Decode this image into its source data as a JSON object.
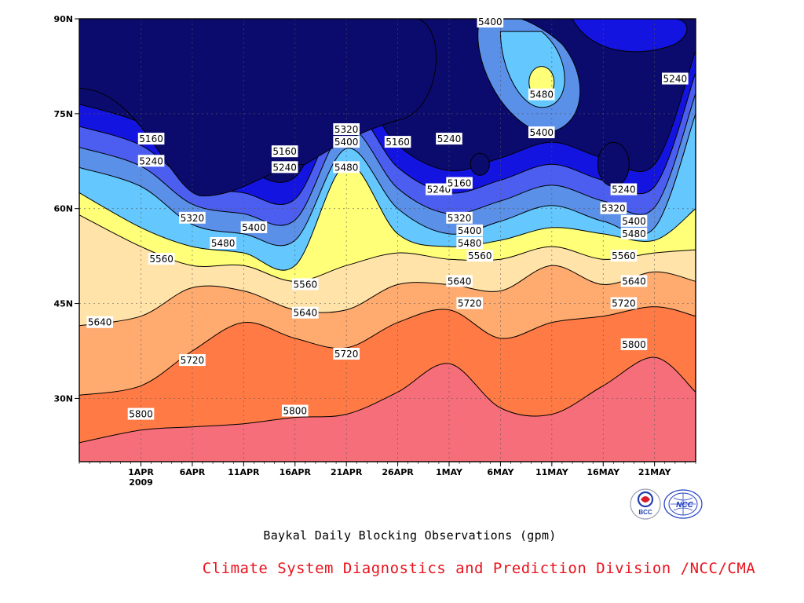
{
  "chart_data": {
    "type": "heatmap",
    "subtype": "filled-contour",
    "title": "Baykal Daily Blocking Observations (gpm)",
    "x_ticks": [
      {
        "date": "2009-04-01",
        "label": "1APR",
        "sublabel": "2009"
      },
      {
        "date": "2009-04-06",
        "label": "6APR"
      },
      {
        "date": "2009-04-11",
        "label": "11APR"
      },
      {
        "date": "2009-04-16",
        "label": "16APR"
      },
      {
        "date": "2009-04-21",
        "label": "21APR"
      },
      {
        "date": "2009-04-26",
        "label": "26APR"
      },
      {
        "date": "2009-05-01",
        "label": "1MAY"
      },
      {
        "date": "2009-05-06",
        "label": "6MAY"
      },
      {
        "date": "2009-05-11",
        "label": "11MAY"
      },
      {
        "date": "2009-05-16",
        "label": "16MAY"
      },
      {
        "date": "2009-05-21",
        "label": "21MAY"
      }
    ],
    "xlim": [
      "2009-03-26",
      "2009-05-25"
    ],
    "y_ticks": [
      {
        "value": 30,
        "label": "30N"
      },
      {
        "value": 45,
        "label": "45N"
      },
      {
        "value": 60,
        "label": "60N"
      },
      {
        "value": 75,
        "label": "75N"
      },
      {
        "value": 90,
        "label": "90N"
      }
    ],
    "ylim": [
      20,
      90
    ],
    "grid": true,
    "contour_levels": [
      5160,
      5240,
      5320,
      5400,
      5480,
      5560,
      5640,
      5720,
      5800
    ],
    "fill_colors": [
      "#0b0b6e",
      "#1414e0",
      "#4b5ef0",
      "#5a90e8",
      "#64c8ff",
      "#ffff78",
      "#ffe3a8",
      "#ffaa6e",
      "#ff7a44",
      "#f56e7a"
    ],
    "contour_lines": [
      {
        "level": 5800,
        "points": [
          [
            "2009-03-26",
            23
          ],
          [
            "2009-04-01",
            25
          ],
          [
            "2009-04-06",
            25.5
          ],
          [
            "2009-04-11",
            26
          ],
          [
            "2009-04-16",
            27
          ],
          [
            "2009-04-21",
            27.5
          ],
          [
            "2009-04-26",
            31
          ],
          [
            "2009-05-01",
            35.5
          ],
          [
            "2009-05-06",
            28.5
          ],
          [
            "2009-05-11",
            27.5
          ],
          [
            "2009-05-16",
            32
          ],
          [
            "2009-05-21",
            36.5
          ],
          [
            "2009-05-25",
            31
          ]
        ]
      },
      {
        "level": 5720,
        "points": [
          [
            "2009-03-26",
            30.5
          ],
          [
            "2009-04-01",
            32
          ],
          [
            "2009-04-06",
            37.5
          ],
          [
            "2009-04-11",
            42
          ],
          [
            "2009-04-16",
            39.5
          ],
          [
            "2009-04-21",
            38
          ],
          [
            "2009-04-26",
            42
          ],
          [
            "2009-05-01",
            44
          ],
          [
            "2009-05-06",
            39.5
          ],
          [
            "2009-05-11",
            42
          ],
          [
            "2009-05-16",
            43
          ],
          [
            "2009-05-21",
            44.5
          ],
          [
            "2009-05-25",
            43
          ]
        ]
      },
      {
        "level": 5640,
        "points": [
          [
            "2009-03-26",
            41.5
          ],
          [
            "2009-04-01",
            43
          ],
          [
            "2009-04-06",
            47.5
          ],
          [
            "2009-04-11",
            47
          ],
          [
            "2009-04-16",
            44
          ],
          [
            "2009-04-21",
            44
          ],
          [
            "2009-04-26",
            48
          ],
          [
            "2009-05-01",
            48
          ],
          [
            "2009-05-06",
            47
          ],
          [
            "2009-05-11",
            51
          ],
          [
            "2009-05-16",
            48
          ],
          [
            "2009-05-21",
            50
          ],
          [
            "2009-05-25",
            48.5
          ]
        ]
      },
      {
        "level": 5560,
        "points": [
          [
            "2009-03-26",
            59
          ],
          [
            "2009-04-01",
            54
          ],
          [
            "2009-04-06",
            51
          ],
          [
            "2009-04-11",
            51
          ],
          [
            "2009-04-16",
            48.5
          ],
          [
            "2009-04-21",
            51
          ],
          [
            "2009-04-26",
            53
          ],
          [
            "2009-05-01",
            52
          ],
          [
            "2009-05-06",
            52
          ],
          [
            "2009-05-11",
            54
          ],
          [
            "2009-05-16",
            52
          ],
          [
            "2009-05-21",
            53
          ],
          [
            "2009-05-25",
            53.5
          ]
        ]
      },
      {
        "level": 5480,
        "points": [
          [
            "2009-03-26",
            62.5
          ],
          [
            "2009-04-01",
            57
          ],
          [
            "2009-04-06",
            54
          ],
          [
            "2009-04-11",
            53
          ],
          [
            "2009-04-16",
            51
          ],
          [
            "2009-04-21",
            67
          ],
          [
            "2009-04-26",
            56
          ],
          [
            "2009-05-01",
            54
          ],
          [
            "2009-05-06",
            55
          ],
          [
            "2009-05-11",
            57
          ],
          [
            "2009-05-16",
            56
          ],
          [
            "2009-05-21",
            55
          ],
          [
            "2009-05-25",
            60
          ]
        ]
      },
      {
        "level": 5400,
        "points": [
          [
            "2009-03-26",
            66.5
          ],
          [
            "2009-04-01",
            63.5
          ],
          [
            "2009-04-06",
            57.5
          ],
          [
            "2009-04-11",
            56
          ],
          [
            "2009-04-16",
            55
          ],
          [
            "2009-04-21",
            69.5
          ],
          [
            "2009-04-26",
            60
          ],
          [
            "2009-05-01",
            56
          ],
          [
            "2009-05-06",
            58
          ],
          [
            "2009-05-11",
            60.5
          ],
          [
            "2009-05-16",
            58
          ],
          [
            "2009-05-21",
            57
          ],
          [
            "2009-05-25",
            75
          ]
        ]
      }
    ],
    "contour_labels": [
      {
        "level": 5160,
        "date": "2009-04-02",
        "lat": 71
      },
      {
        "level": 5240,
        "date": "2009-04-02",
        "lat": 67.5
      },
      {
        "level": 5160,
        "date": "2009-04-15",
        "lat": 69
      },
      {
        "level": 5240,
        "date": "2009-04-15",
        "lat": 66.5
      },
      {
        "level": 5320,
        "date": "2009-04-06",
        "lat": 58.5
      },
      {
        "level": 5400,
        "date": "2009-04-12",
        "lat": 57
      },
      {
        "level": 5480,
        "date": "2009-04-09",
        "lat": 54.5
      },
      {
        "level": 5560,
        "date": "2009-04-03",
        "lat": 52
      },
      {
        "level": 5560,
        "date": "2009-04-17",
        "lat": 48
      },
      {
        "level": 5640,
        "date": "2009-03-28",
        "lat": 42
      },
      {
        "level": 5640,
        "date": "2009-04-17",
        "lat": 43.5
      },
      {
        "level": 5720,
        "date": "2009-04-06",
        "lat": 36
      },
      {
        "level": 5720,
        "date": "2009-04-21",
        "lat": 37
      },
      {
        "level": 5800,
        "date": "2009-04-01",
        "lat": 27.5
      },
      {
        "level": 5800,
        "date": "2009-04-16",
        "lat": 28
      },
      {
        "level": 5320,
        "date": "2009-04-21",
        "lat": 72.5
      },
      {
        "level": 5400,
        "date": "2009-04-21",
        "lat": 70.5
      },
      {
        "level": 5480,
        "date": "2009-04-21",
        "lat": 66.5
      },
      {
        "level": 5160,
        "date": "2009-04-26",
        "lat": 70.5
      },
      {
        "level": 5240,
        "date": "2009-05-01",
        "lat": 71
      },
      {
        "level": 5240,
        "date": "2009-04-30",
        "lat": 63
      },
      {
        "level": 5160,
        "date": "2009-05-02",
        "lat": 64
      },
      {
        "level": 5320,
        "date": "2009-05-02",
        "lat": 58.5
      },
      {
        "level": 5400,
        "date": "2009-05-03",
        "lat": 56.5
      },
      {
        "level": 5480,
        "date": "2009-05-03",
        "lat": 54.5
      },
      {
        "level": 5560,
        "date": "2009-05-04",
        "lat": 52.5
      },
      {
        "level": 5640,
        "date": "2009-05-02",
        "lat": 48.5
      },
      {
        "level": 5720,
        "date": "2009-05-03",
        "lat": 45
      },
      {
        "level": 5400,
        "date": "2009-05-05",
        "lat": 89.5
      },
      {
        "level": 5480,
        "date": "2009-05-10",
        "lat": 78
      },
      {
        "level": 5400,
        "date": "2009-05-10",
        "lat": 72
      },
      {
        "level": 5240,
        "date": "2009-05-23",
        "lat": 80.5
      },
      {
        "level": 5240,
        "date": "2009-05-18",
        "lat": 63
      },
      {
        "level": 5320,
        "date": "2009-05-17",
        "lat": 60
      },
      {
        "level": 5400,
        "date": "2009-05-19",
        "lat": 58
      },
      {
        "level": 5480,
        "date": "2009-05-19",
        "lat": 56
      },
      {
        "level": 5560,
        "date": "2009-05-18",
        "lat": 52.5
      },
      {
        "level": 5640,
        "date": "2009-05-19",
        "lat": 48.5
      },
      {
        "level": 5720,
        "date": "2009-05-18",
        "lat": 45
      },
      {
        "level": 5800,
        "date": "2009-05-19",
        "lat": 38.5
      }
    ]
  },
  "caption": {
    "title": "Baykal Daily Blocking Observations (gpm)",
    "credit": "Climate System Diagnostics and Prediction Division /NCC/CMA"
  },
  "logos": [
    {
      "name": "bcc",
      "text": "BCC"
    },
    {
      "name": "ncc",
      "text": "NCC"
    }
  ]
}
